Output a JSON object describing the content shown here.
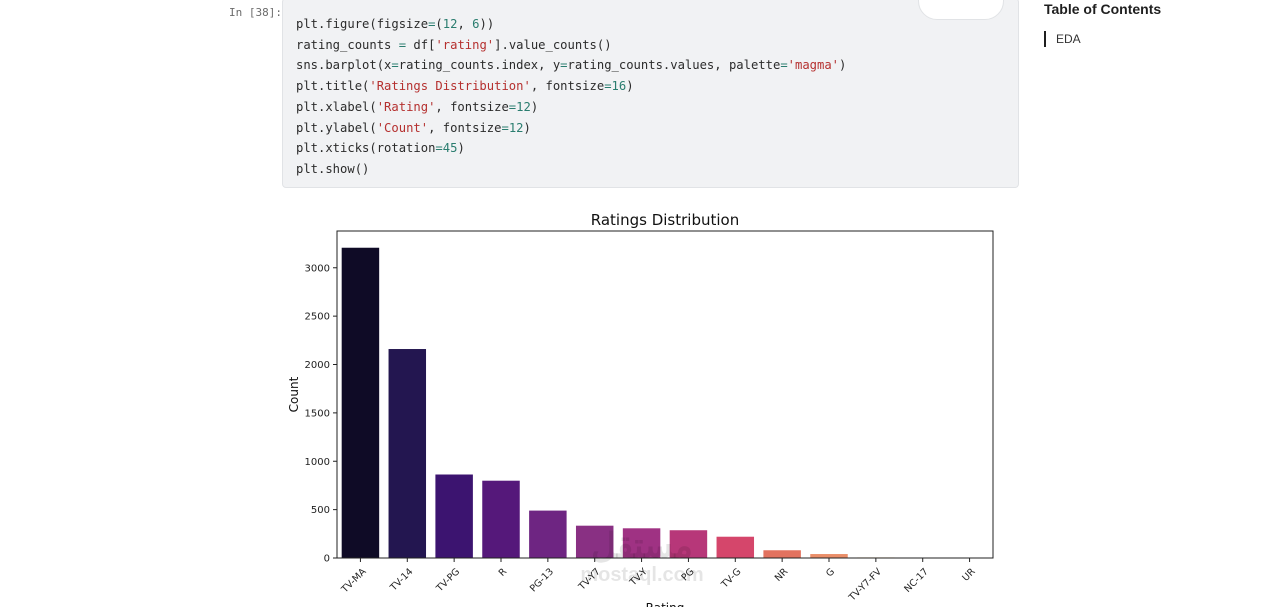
{
  "cell": {
    "prompt": "In [38]:",
    "code_lines": [
      [
        {
          "t": "plt.figure(figsize"
        },
        {
          "t": "=",
          "c": "num"
        },
        {
          "t": "("
        },
        {
          "t": "12",
          "c": "num"
        },
        {
          "t": ", "
        },
        {
          "t": "6",
          "c": "num"
        },
        {
          "t": "))"
        }
      ],
      [
        {
          "t": "rating_counts "
        },
        {
          "t": "=",
          "c": "num"
        },
        {
          "t": " df["
        },
        {
          "t": "'rating'",
          "c": "str"
        },
        {
          "t": "].value_counts()"
        }
      ],
      [
        {
          "t": "sns.barplot(x"
        },
        {
          "t": "=",
          "c": "num"
        },
        {
          "t": "rating_counts.index, y"
        },
        {
          "t": "=",
          "c": "num"
        },
        {
          "t": "rating_counts.values, palette"
        },
        {
          "t": "=",
          "c": "num"
        },
        {
          "t": "'magma'",
          "c": "str"
        },
        {
          "t": ")"
        }
      ],
      [
        {
          "t": "plt.title("
        },
        {
          "t": "'Ratings Distribution'",
          "c": "str"
        },
        {
          "t": ", fontsize"
        },
        {
          "t": "=",
          "c": "num"
        },
        {
          "t": "16",
          "c": "num"
        },
        {
          "t": ")"
        }
      ],
      [
        {
          "t": "plt.xlabel("
        },
        {
          "t": "'Rating'",
          "c": "str"
        },
        {
          "t": ", fontsize"
        },
        {
          "t": "=",
          "c": "num"
        },
        {
          "t": "12",
          "c": "num"
        },
        {
          "t": ")"
        }
      ],
      [
        {
          "t": "plt.ylabel("
        },
        {
          "t": "'Count'",
          "c": "str"
        },
        {
          "t": ", fontsize"
        },
        {
          "t": "=",
          "c": "num"
        },
        {
          "t": "12",
          "c": "num"
        },
        {
          "t": ")"
        }
      ],
      [
        {
          "t": "plt.xticks(rotation"
        },
        {
          "t": "=",
          "c": "num"
        },
        {
          "t": "45",
          "c": "num"
        },
        {
          "t": ")"
        }
      ],
      [
        {
          "t": "plt.show()"
        }
      ]
    ],
    "tools": {
      "copy_icon": "copy-icon",
      "code_icon": "code-toggle-icon"
    }
  },
  "toc": {
    "title": "Table of Contents",
    "items": [
      "EDA"
    ]
  },
  "watermark": {
    "mark": "مستقل",
    "text": "mostaql.com"
  },
  "chart_data": {
    "type": "bar",
    "title": "Ratings Distribution",
    "xlabel": "Rating",
    "ylabel": "Count",
    "categories": [
      "TV-MA",
      "TV-14",
      "TV-PG",
      "R",
      "PG-13",
      "TV-Y7",
      "TV-Y",
      "PG",
      "TV-G",
      "NR",
      "G",
      "TV-Y7-FV",
      "NC-17",
      "UR"
    ],
    "values": [
      3207,
      2160,
      863,
      799,
      490,
      334,
      307,
      287,
      220,
      80,
      41,
      6,
      3,
      3
    ],
    "colors": [
      "#0f0b26",
      "#231650",
      "#3c1470",
      "#55187a",
      "#6e2582",
      "#893083",
      "#9f3283",
      "#b73779",
      "#d5466b",
      "#e2725f",
      "#ea8e69",
      "#f9c586",
      "#fbd79a",
      "#fce7ab"
    ],
    "ylim": [
      0,
      3380
    ],
    "yticks": [
      0,
      500,
      1000,
      1500,
      2000,
      2500,
      3000
    ],
    "grid": false,
    "legend": "none"
  }
}
